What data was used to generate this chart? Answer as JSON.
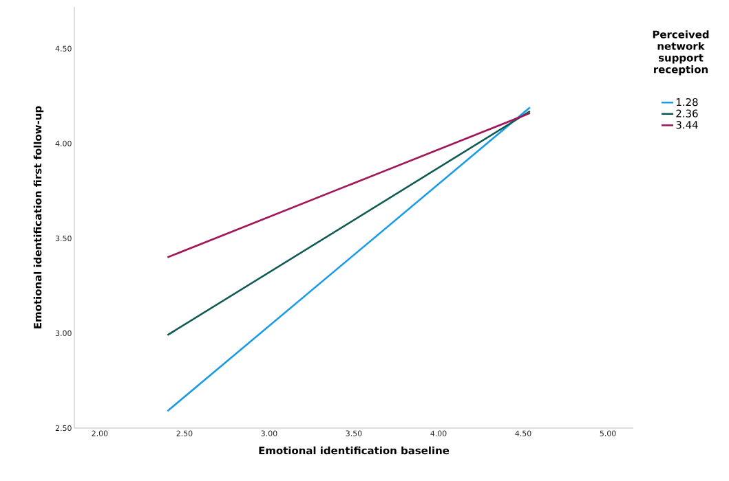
{
  "chart_data": {
    "type": "line",
    "xlabel": "Emotional identification baseline",
    "ylabel": "Emotional identification first follow-up",
    "legend_title": "Perceived network support reception",
    "x": [
      2.4,
      4.54
    ],
    "series": [
      {
        "name": "1.28",
        "color": "#1a9be6",
        "values": [
          2.59,
          4.19
        ]
      },
      {
        "name": "2.36",
        "color": "#0f5a52",
        "values": [
          2.99,
          4.17
        ]
      },
      {
        "name": "3.44",
        "color": "#a0185a",
        "values": [
          3.4,
          4.16
        ]
      }
    ],
    "xlim": [
      1.85,
      5.15
    ],
    "ylim": [
      2.5,
      4.72
    ],
    "xticks": [
      {
        "value": 2,
        "label": "2.00"
      },
      {
        "value": 2.5,
        "label": "2.50"
      },
      {
        "value": 3,
        "label": "3.00"
      },
      {
        "value": 3.5,
        "label": "3.50"
      },
      {
        "value": 4,
        "label": "4.00"
      },
      {
        "value": 4.5,
        "label": "4.50"
      },
      {
        "value": 5,
        "label": "5.00"
      }
    ],
    "yticks": [
      {
        "value": 2.5,
        "label": "2.50"
      },
      {
        "value": 3,
        "label": "3.00"
      },
      {
        "value": 3.5,
        "label": "3.50"
      },
      {
        "value": 4,
        "label": "4.00"
      },
      {
        "value": 4.5,
        "label": "4.50"
      }
    ],
    "grid": false,
    "legend": "top right",
    "marker": "none",
    "line_style": "solid"
  }
}
